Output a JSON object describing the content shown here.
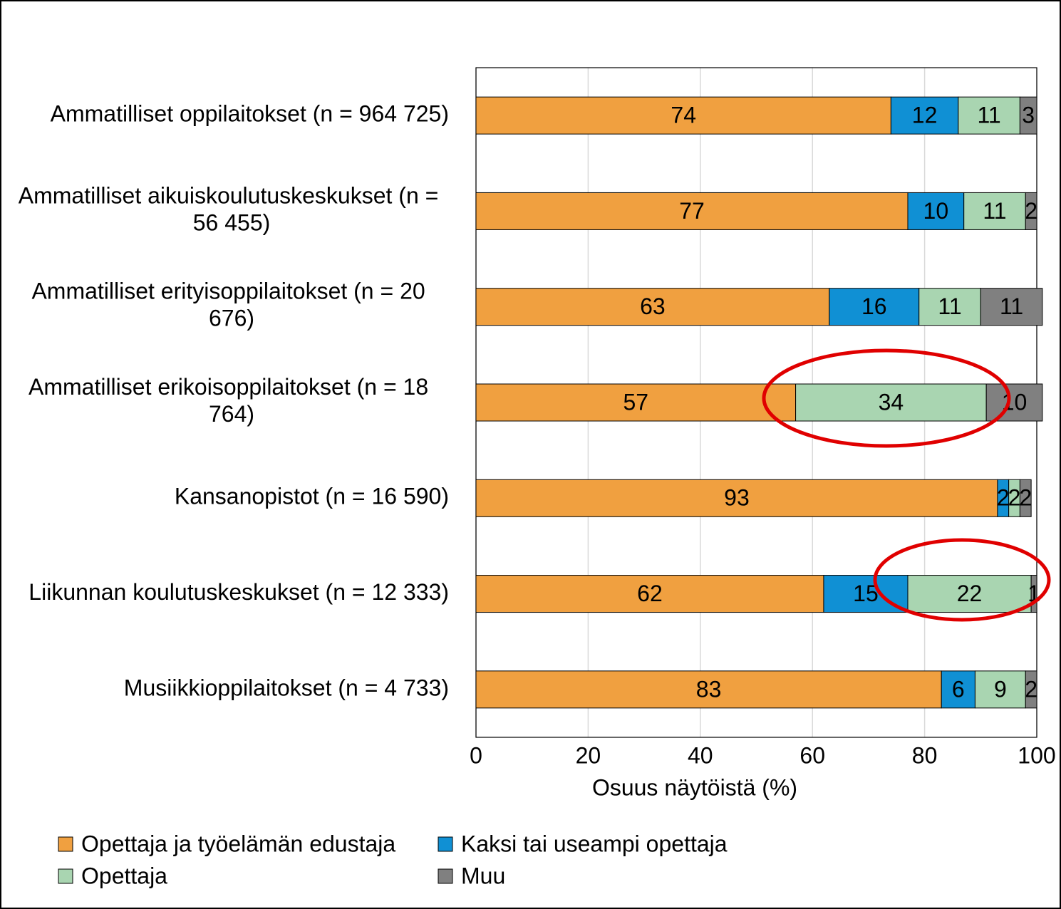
{
  "chart_data": {
    "type": "stacked_barh",
    "categories": [
      "Ammatilliset oppilaitokset (n = 964 725)",
      "Ammatilliset aikuiskoulutuskeskukset (n = 56 455)",
      "Ammatilliset erityisoppilaitokset (n = 20 676)",
      "Ammatilliset erikoisoppilaitokset (n = 18 764)",
      "Kansanopistot (n = 16 590)",
      "Liikunnan koulutuskeskukset (n = 12 333)",
      "Musiikkioppilaitokset (n = 4 733)"
    ],
    "series": [
      {
        "name": "Opettaja ja työelämän edustaja",
        "color": "#f0a040",
        "values": [
          74,
          77,
          63,
          57,
          93,
          62,
          83
        ]
      },
      {
        "name": "Kaksi tai useampi opettaja",
        "color": "#1090d4",
        "values": [
          12,
          10,
          16,
          null,
          2,
          15,
          6
        ]
      },
      {
        "name": "Opettaja",
        "color": "#a9d5b1",
        "values": [
          11,
          11,
          11,
          34,
          2,
          22,
          9
        ]
      },
      {
        "name": "Muu",
        "color": "#808080",
        "values": [
          3,
          2,
          11,
          10,
          2,
          1,
          2
        ]
      }
    ],
    "xlabel": "Osuus näytöistä (%)",
    "xlim": [
      0,
      100
    ],
    "xticks": [
      0,
      20,
      40,
      60,
      80,
      100
    ],
    "grid": true
  }
}
